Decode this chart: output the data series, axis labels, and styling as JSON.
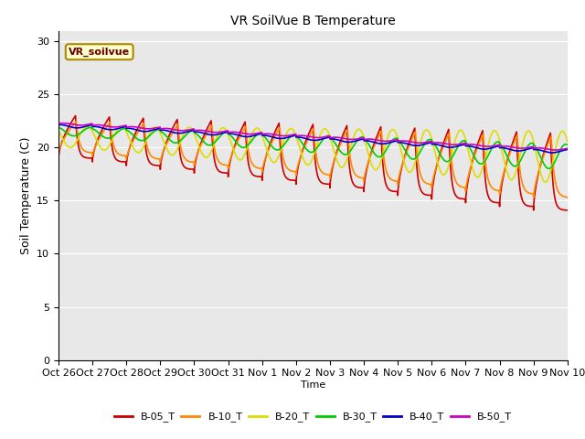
{
  "title": "VR SoilVue B Temperature",
  "xlabel": "Time",
  "ylabel": "Soil Temperature (C)",
  "ylim": [
    0,
    31
  ],
  "yticks": [
    0,
    5,
    10,
    15,
    20,
    25,
    30
  ],
  "legend_label": "VR_soilvue",
  "series_colors": {
    "B-05_T": "#cc0000",
    "B-10_T": "#ff8800",
    "B-20_T": "#dddd00",
    "B-30_T": "#00cc00",
    "B-40_T": "#0000cc",
    "B-50_T": "#cc00cc"
  },
  "xtick_labels": [
    "Oct 26",
    "Oct 27",
    "Oct 28",
    "Oct 29",
    "Oct 30",
    "Oct 31",
    "Nov 1",
    "Nov 2",
    "Nov 3",
    "Nov 4",
    "Nov 5",
    "Nov 6",
    "Nov 7",
    "Nov 8",
    "Nov 9",
    "Nov 10"
  ],
  "bg_color": "#e8e8e8",
  "fig_color": "#ffffff",
  "linewidth": 1.2
}
